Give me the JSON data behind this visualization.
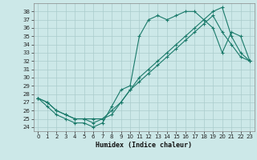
{
  "xlabel": "Humidex (Indice chaleur)",
  "bg_color": "#cce8e8",
  "grid_color": "#aacccc",
  "line_color": "#1a7a6a",
  "xlim": [
    -0.5,
    23.5
  ],
  "ylim": [
    23.5,
    39.0
  ],
  "xticks": [
    0,
    1,
    2,
    3,
    4,
    5,
    6,
    7,
    8,
    9,
    10,
    11,
    12,
    13,
    14,
    15,
    16,
    17,
    18,
    19,
    20,
    21,
    22,
    23
  ],
  "yticks": [
    24,
    25,
    26,
    27,
    28,
    29,
    30,
    31,
    32,
    33,
    34,
    35,
    36,
    37,
    38
  ],
  "line1_x": [
    0,
    1,
    2,
    3,
    4,
    5,
    6,
    7,
    8,
    9,
    10,
    11,
    12,
    13,
    14,
    15,
    16,
    17,
    18,
    19,
    20,
    21,
    22,
    23
  ],
  "line1_y": [
    27.5,
    26.5,
    25.5,
    25,
    24.5,
    24.5,
    24,
    24.5,
    26.5,
    28.5,
    29,
    35,
    37,
    37.5,
    37,
    37.5,
    38,
    38,
    37,
    36,
    33,
    35.5,
    35,
    32
  ],
  "line2_x": [
    0,
    1,
    2,
    3,
    4,
    5,
    6,
    7,
    8,
    9,
    10,
    11,
    12,
    13,
    14,
    15,
    16,
    17,
    18,
    19,
    20,
    21,
    22,
    23
  ],
  "line2_y": [
    27.5,
    27,
    26,
    25.5,
    25,
    25,
    25,
    25,
    26,
    27,
    28.5,
    30,
    31,
    32,
    33,
    34,
    35,
    36,
    37,
    38,
    38.5,
    35,
    33,
    32
  ],
  "line3_x": [
    0,
    1,
    2,
    3,
    4,
    5,
    6,
    7,
    8,
    9,
    10,
    11,
    12,
    13,
    14,
    15,
    16,
    17,
    18,
    19,
    20,
    21,
    22,
    23
  ],
  "line3_y": [
    27.5,
    27,
    26,
    25.5,
    25,
    25,
    24.5,
    25,
    25.5,
    27,
    28.5,
    29.5,
    30.5,
    31.5,
    32.5,
    33.5,
    34.5,
    35.5,
    36.5,
    37.5,
    35.5,
    34,
    32.5,
    32
  ]
}
